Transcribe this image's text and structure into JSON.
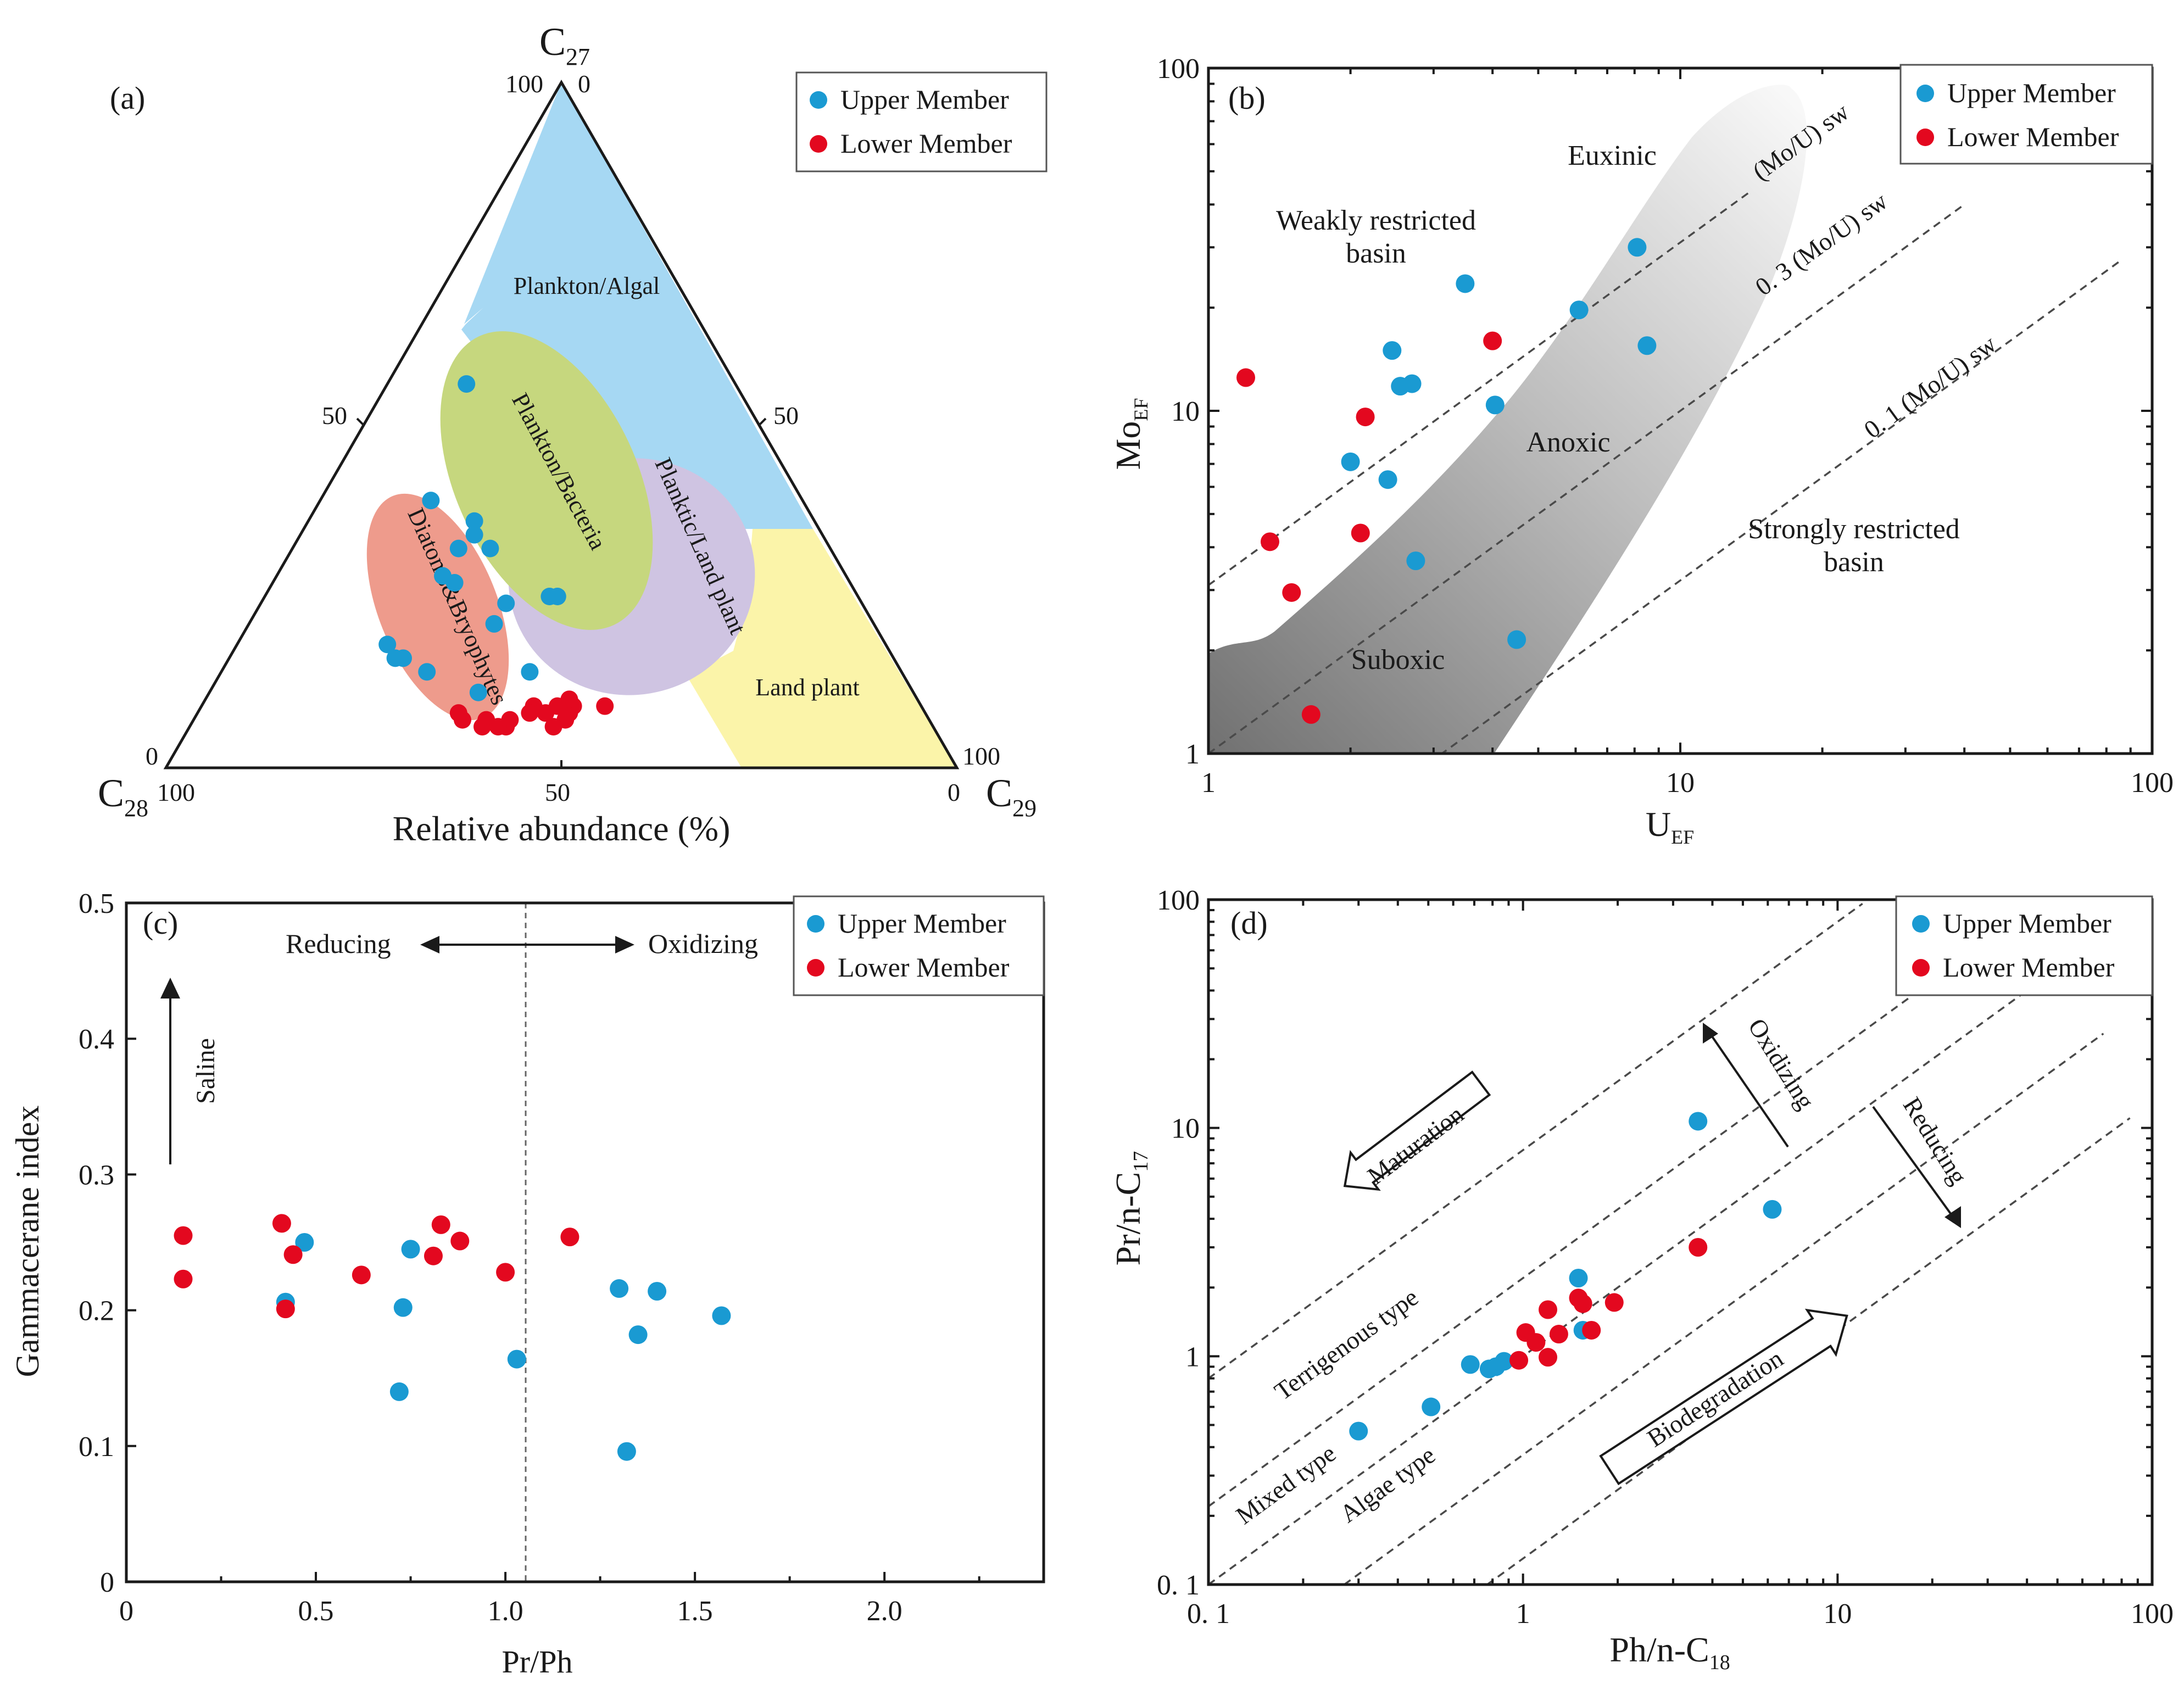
{
  "colors": {
    "upper": "#1a9ad2",
    "lower": "#e3081f",
    "plankton_algal": "#a6d8f3",
    "plankton_bacteria": "#c6d77e",
    "planktic_land": "#cfc4e2",
    "diatoms": "#ee9b8c",
    "land_plant": "#fbf4a9"
  },
  "legend": {
    "upper": "Upper Member",
    "lower": "Lower Member"
  },
  "chart_data": [
    {
      "id": "a",
      "panel_label": "(a)",
      "type": "ternary",
      "apex_top": {
        "base": "C",
        "sub": "27"
      },
      "apex_left": {
        "base": "C",
        "sub": "28"
      },
      "apex_right": {
        "base": "C",
        "sub": "29"
      },
      "xlabel": "Relative abundance (%)",
      "tick_labels": {
        "top_left": "100",
        "top_right": "0",
        "left_mid": "50",
        "right_mid": "50",
        "left_bottom": "0",
        "right_bottom": "100",
        "bottom_left": "100",
        "bottom_mid": "50",
        "bottom_right": "0"
      },
      "region_labels": {
        "plankton_algal": "Plankton/Algal",
        "plankton_bacteria": "Plankton/Bacteria",
        "planktic_land": "Planktic/Land plant",
        "diatoms": "Diatoms&Bryophytes",
        "land_plant": "Land plant"
      },
      "series": [
        {
          "name": "Upper Member",
          "points": [
            [
              56,
              10
            ],
            [
              39,
              14
            ],
            [
              36,
              21
            ],
            [
              34,
              22
            ],
            [
              32,
              25
            ],
            [
              32,
              21
            ],
            [
              28,
              21
            ],
            [
              27,
              23
            ],
            [
              25,
              37
            ],
            [
              25,
              36
            ],
            [
              24,
              31
            ],
            [
              21,
              31
            ],
            [
              16,
              22
            ],
            [
              16,
              21
            ],
            [
              14,
              26
            ],
            [
              11,
              34
            ],
            [
              14,
              39
            ],
            [
              18,
              19
            ]
          ]
        },
        {
          "name": "Lower Member",
          "points": [
            [
              9,
              51
            ],
            [
              9,
              47
            ],
            [
              8,
              47
            ],
            [
              10,
              46
            ],
            [
              9,
              45
            ],
            [
              7,
              47
            ],
            [
              8,
              44
            ],
            [
              6,
              46
            ],
            [
              9,
              42
            ],
            [
              8,
              42
            ],
            [
              7,
              40
            ],
            [
              6,
              40
            ],
            [
              7,
              37
            ],
            [
              6,
              37
            ],
            [
              8,
              33
            ],
            [
              7,
              34
            ],
            [
              6,
              39
            ]
          ]
        }
      ]
    },
    {
      "id": "b",
      "panel_label": "(b)",
      "type": "scatter",
      "xscale": "log",
      "yscale": "log",
      "xlabel": {
        "base": "U",
        "sub": "EF"
      },
      "ylabel": {
        "base": "Mo",
        "sub": "EF"
      },
      "xlim": [
        1,
        100
      ],
      "ylim": [
        1,
        100
      ],
      "x_ticks": [
        "1",
        "10",
        "100"
      ],
      "y_ticks": [
        "1",
        "10",
        "100"
      ],
      "annotations": {
        "euxinic": "Euxinic",
        "weakly_1": "Weakly restricted",
        "weakly_2": "basin",
        "anoxic": "Anoxic",
        "suboxic": "Suboxic",
        "strongly_1": "Strongly restricted",
        "strongly_2": "basin",
        "line1": "(Mo/U) sw",
        "line2": "0. 3 (Mo/U) sw",
        "line3": "0. 1 (Mo/U) sw"
      },
      "series": [
        {
          "name": "Upper Member",
          "points": [
            [
              3.5,
              23.5
            ],
            [
              8.1,
              30
            ],
            [
              6.1,
              19.7
            ],
            [
              8.5,
              15.5
            ],
            [
              2.45,
              15
            ],
            [
              2.55,
              11.8
            ],
            [
              2.7,
              12
            ],
            [
              4.05,
              10.4
            ],
            [
              2.0,
              7.1
            ],
            [
              2.4,
              6.3
            ],
            [
              2.75,
              3.65
            ],
            [
              4.5,
              2.15
            ]
          ]
        },
        {
          "name": "Lower Member",
          "points": [
            [
              1.2,
              12.5
            ],
            [
              4.0,
              16
            ],
            [
              2.15,
              9.6
            ],
            [
              1.35,
              4.15
            ],
            [
              2.1,
              4.4
            ],
            [
              1.5,
              2.95
            ],
            [
              1.65,
              1.3
            ]
          ]
        }
      ]
    },
    {
      "id": "c",
      "panel_label": "(c)",
      "type": "scatter",
      "xlabel": "Pr/Ph",
      "ylabel": "Gammacerane index",
      "xlim": [
        0,
        2.42
      ],
      "ylim": [
        0,
        0.5
      ],
      "x_ticks": [
        "0",
        "0.5",
        "1.0",
        "1.5",
        "2.0"
      ],
      "y_ticks": [
        "0",
        "0.1",
        "0.2",
        "0.3",
        "0.4",
        "0.5"
      ],
      "annotations": {
        "reducing": "Reducing",
        "oxidizing": "Oxidizing",
        "saline": "Saline"
      },
      "series": [
        {
          "name": "Upper Member",
          "points": [
            [
              0.47,
              0.25
            ],
            [
              0.75,
              0.245
            ],
            [
              0.42,
              0.206
            ],
            [
              0.73,
              0.202
            ],
            [
              0.72,
              0.14
            ],
            [
              1.03,
              0.164
            ],
            [
              1.3,
              0.216
            ],
            [
              1.4,
              0.214
            ],
            [
              1.35,
              0.182
            ],
            [
              1.57,
              0.196
            ],
            [
              1.32,
              0.096
            ]
          ]
        },
        {
          "name": "Lower Member",
          "points": [
            [
              0.15,
              0.255
            ],
            [
              0.15,
              0.223
            ],
            [
              0.41,
              0.264
            ],
            [
              0.44,
              0.241
            ],
            [
              0.42,
              0.201
            ],
            [
              0.62,
              0.226
            ],
            [
              0.83,
              0.263
            ],
            [
              0.81,
              0.24
            ],
            [
              0.88,
              0.251
            ],
            [
              1.0,
              0.228
            ],
            [
              1.17,
              0.254
            ]
          ]
        }
      ]
    },
    {
      "id": "d",
      "panel_label": "(d)",
      "type": "scatter",
      "xscale": "log",
      "yscale": "log",
      "xlabel": {
        "base": "Ph/n-C",
        "sub": "18"
      },
      "ylabel": {
        "base": "Pr/n-C",
        "sub": "17"
      },
      "xlim": [
        0.1,
        100
      ],
      "ylim": [
        0.1,
        100
      ],
      "x_ticks": [
        "0. 1",
        "1",
        "10",
        "100"
      ],
      "y_ticks": [
        "0. 1",
        "1",
        "10",
        "100"
      ],
      "annotations": {
        "maturation": "Maturation",
        "oxidizing": "Oxidizing",
        "reducing": "Reducing",
        "terrigenous": "Terrigenous type",
        "mixed": "Mixed type",
        "algae": "Algae type",
        "biodegradation": "Biodegradation"
      },
      "series": [
        {
          "name": "Upper Member",
          "points": [
            [
              3.6,
              10.7
            ],
            [
              6.2,
              4.4
            ],
            [
              1.5,
              2.2
            ],
            [
              1.55,
              1.3
            ],
            [
              0.87,
              0.95
            ],
            [
              0.68,
              0.92
            ],
            [
              0.78,
              0.88
            ],
            [
              0.82,
              0.9
            ],
            [
              0.51,
              0.6
            ],
            [
              0.3,
              0.47
            ]
          ]
        },
        {
          "name": "Lower Member",
          "points": [
            [
              3.6,
              3.0
            ],
            [
              1.5,
              1.8
            ],
            [
              1.55,
              1.7
            ],
            [
              1.95,
              1.72
            ],
            [
              1.2,
              1.6
            ],
            [
              1.02,
              1.27
            ],
            [
              1.3,
              1.25
            ],
            [
              1.65,
              1.3
            ],
            [
              1.1,
              1.15
            ],
            [
              0.97,
              0.96
            ],
            [
              1.2,
              0.99
            ]
          ]
        }
      ]
    }
  ]
}
